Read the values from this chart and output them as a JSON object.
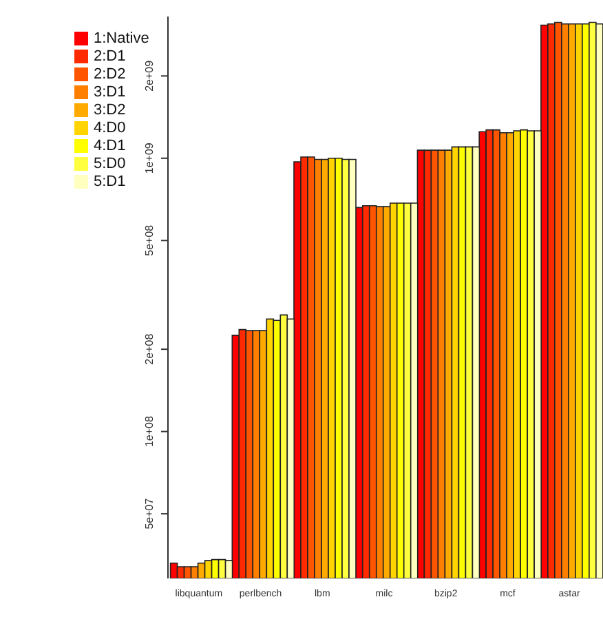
{
  "chart_data": {
    "type": "bar",
    "categories": [
      "libquantum",
      "perlbench",
      "lbm",
      "milc",
      "bzip2",
      "mcf",
      "astar"
    ],
    "series": [
      {
        "name": "1:Native",
        "color": "#ff0000",
        "values": [
          33000000.0,
          225000000.0,
          970000000.0,
          660000000.0,
          1070000000.0,
          1250000000.0,
          3070000000.0
        ]
      },
      {
        "name": "2:D1",
        "color": "#ff2a00",
        "values": [
          32000000.0,
          236000000.0,
          1010000000.0,
          670000000.0,
          1070000000.0,
          1270000000.0,
          3100000000.0
        ]
      },
      {
        "name": "2:D2",
        "color": "#ff5500",
        "values": [
          32000000.0,
          234000000.0,
          1010000000.0,
          670000000.0,
          1070000000.0,
          1270000000.0,
          3140000000.0
        ]
      },
      {
        "name": "3:D1",
        "color": "#ff8000",
        "values": [
          32000000.0,
          234000000.0,
          990000000.0,
          665000000.0,
          1070000000.0,
          1240000000.0,
          3100000000.0
        ]
      },
      {
        "name": "3:D2",
        "color": "#ffaa00",
        "values": [
          33000000.0,
          234000000.0,
          990000000.0,
          665000000.0,
          1070000000.0,
          1240000000.0,
          3100000000.0
        ]
      },
      {
        "name": "4:D0",
        "color": "#ffd400",
        "values": [
          33700000.0,
          258000000.0,
          1000000000.0,
          685000000.0,
          1100000000.0,
          1260000000.0,
          3100000000.0
        ]
      },
      {
        "name": "4:D1",
        "color": "#ffff00",
        "values": [
          34000000.0,
          255000000.0,
          1000000000.0,
          685000000.0,
          1100000000.0,
          1270000000.0,
          3100000000.0
        ]
      },
      {
        "name": "5:D0",
        "color": "#ffff40",
        "values": [
          34000000.0,
          267000000.0,
          990000000.0,
          685000000.0,
          1100000000.0,
          1260000000.0,
          3140000000.0
        ]
      },
      {
        "name": "5:D1",
        "color": "#ffffbf",
        "values": [
          33700000.0,
          258000000.0,
          990000000.0,
          685000000.0,
          1100000000.0,
          1260000000.0,
          3100000000.0
        ]
      }
    ],
    "log": "y",
    "ylim": [
      29000000.0,
      3300000000.0
    ],
    "yticks": [
      {
        "value": 50000000.0,
        "label": "5e+07"
      },
      {
        "value": 100000000.0,
        "label": "1e+08"
      },
      {
        "value": 200000000.0,
        "label": "2e+08"
      },
      {
        "value": 500000000.0,
        "label": "5e+08"
      },
      {
        "value": 1000000000.0,
        "label": "1e+09"
      },
      {
        "value": 2000000000.0,
        "label": "2e+09"
      }
    ],
    "legend": "top left",
    "grid": false
  }
}
